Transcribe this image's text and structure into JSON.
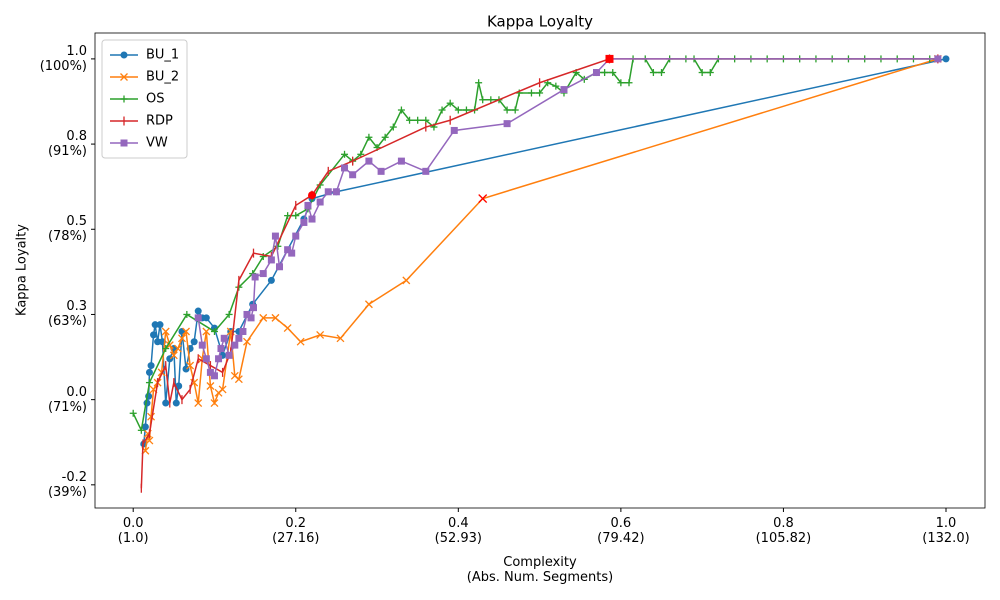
{
  "chart_data": {
    "type": "line",
    "title": "Kappa Loyalty",
    "xlabel": "Complexity\n(Abs. Num. Segments)",
    "ylabel": "Kappa Loyalty",
    "xlim": [
      -0.047,
      1.048
    ],
    "ylim": [
      -0.318,
      1.076
    ],
    "xticks": [
      {
        "value": 0,
        "label": "0.0\n(1.0)"
      },
      {
        "value": 0.2,
        "label": "0.2\n(27.16)"
      },
      {
        "value": 0.4,
        "label": "0.4\n(52.93)"
      },
      {
        "value": 0.6,
        "label": "0.6\n(79.42)"
      },
      {
        "value": 0.8,
        "label": "0.8\n(105.82)"
      },
      {
        "value": 1,
        "label": "1.0\n(132.0)"
      }
    ],
    "yticks": [
      {
        "value": -0.25,
        "label": "-0.2\n(39%)"
      },
      {
        "value": 0,
        "label": "0.0\n(71%)"
      },
      {
        "value": 0.25,
        "label": "0.3\n(63%)"
      },
      {
        "value": 0.5,
        "label": "0.5\n(78%)"
      },
      {
        "value": 0.75,
        "label": "0.8\n(91%)"
      },
      {
        "value": 1,
        "label": "1.0\n(100%)"
      }
    ],
    "legend": "upper left",
    "series": [
      {
        "name": "BU_1",
        "color": "#1f77b4",
        "marker": "o",
        "x": [
          0.013,
          0.015,
          0.017,
          0.019,
          0.02,
          0.022,
          0.025,
          0.027,
          0.03,
          0.033,
          0.036,
          0.04,
          0.045,
          0.05,
          0.053,
          0.056,
          0.06,
          0.065,
          0.07,
          0.075,
          0.08,
          0.085,
          0.09,
          0.1,
          0.11,
          0.12,
          0.13,
          0.147,
          0.17,
          0.21,
          0.22,
          0.25,
          1.0
        ],
        "values": [
          -0.13,
          -0.08,
          -0.01,
          0.01,
          0.08,
          0.1,
          0.19,
          0.22,
          0.17,
          0.22,
          0.17,
          -0.01,
          0.12,
          0.15,
          -0.01,
          0.04,
          0.2,
          0.09,
          0.15,
          0.17,
          0.26,
          0.24,
          0.24,
          0.21,
          0.13,
          0.2,
          0.2,
          0.28,
          0.35,
          0.53,
          0.59,
          0.61,
          1.0
        ]
      },
      {
        "name": "BU_2",
        "color": "#ff7f0e",
        "marker": "x",
        "x": [
          0.015,
          0.018,
          0.02,
          0.022,
          0.025,
          0.03,
          0.035,
          0.04,
          0.045,
          0.05,
          0.055,
          0.06,
          0.065,
          0.07,
          0.075,
          0.08,
          0.085,
          0.09,
          0.095,
          0.1,
          0.105,
          0.11,
          0.12,
          0.125,
          0.13,
          0.14,
          0.16,
          0.175,
          0.19,
          0.206,
          0.23,
          0.255,
          0.29,
          0.336,
          0.43,
          0.99
        ],
        "values": [
          -0.15,
          -0.1,
          -0.12,
          -0.05,
          0.03,
          0.05,
          0.08,
          0.2,
          0.16,
          0.13,
          0.15,
          0.18,
          0.2,
          0.1,
          0.05,
          -0.01,
          0.12,
          0.2,
          0.04,
          -0.01,
          0.02,
          0.03,
          0.2,
          0.07,
          0.06,
          0.17,
          0.24,
          0.24,
          0.21,
          0.17,
          0.19,
          0.18,
          0.28,
          0.35,
          0.59,
          1.0
        ]
      },
      {
        "name": "OS",
        "color": "#2ca02c",
        "marker": "+",
        "x": [
          0.0,
          0.01,
          0.02,
          0.04,
          0.066,
          0.1,
          0.118,
          0.13,
          0.147,
          0.16,
          0.178,
          0.19,
          0.2,
          0.215,
          0.23,
          0.26,
          0.27,
          0.28,
          0.29,
          0.3,
          0.31,
          0.32,
          0.33,
          0.34,
          0.35,
          0.36,
          0.37,
          0.38,
          0.39,
          0.4,
          0.41,
          0.42,
          0.425,
          0.43,
          0.44,
          0.45,
          0.46,
          0.47,
          0.475,
          0.49,
          0.5,
          0.51,
          0.52,
          0.53,
          0.545,
          0.555,
          0.57,
          0.58,
          0.59,
          0.6,
          0.61,
          0.615,
          0.63,
          0.64,
          0.65,
          0.66,
          0.68,
          0.69,
          0.7,
          0.71,
          0.72,
          0.74,
          0.76,
          0.78,
          0.8,
          0.82,
          0.84,
          0.86,
          0.88,
          0.9,
          0.92,
          0.94,
          0.96,
          0.98,
          0.99
        ],
        "values": [
          -0.04,
          -0.09,
          0.05,
          0.15,
          0.25,
          0.2,
          0.25,
          0.33,
          0.37,
          0.42,
          0.45,
          0.54,
          0.54,
          0.56,
          0.63,
          0.72,
          0.7,
          0.72,
          0.77,
          0.74,
          0.77,
          0.8,
          0.85,
          0.82,
          0.82,
          0.82,
          0.8,
          0.85,
          0.87,
          0.85,
          0.85,
          0.85,
          0.93,
          0.88,
          0.88,
          0.88,
          0.85,
          0.85,
          0.9,
          0.9,
          0.9,
          0.93,
          0.92,
          0.9,
          0.96,
          0.94,
          0.96,
          0.96,
          0.96,
          0.93,
          0.93,
          1.0,
          1.0,
          0.96,
          0.96,
          1.0,
          1.0,
          1.0,
          0.96,
          0.96,
          1.0,
          1.0,
          1.0,
          1.0,
          1.0,
          1.0,
          1.0,
          1.0,
          1.0,
          1.0,
          1.0,
          1.0,
          1.0,
          1.0,
          1.0
        ]
      },
      {
        "name": "RDP",
        "color": "#d62728",
        "marker": "|",
        "x": [
          0.01,
          0.012,
          0.02,
          0.03,
          0.04,
          0.045,
          0.05,
          0.06,
          0.07,
          0.08,
          0.095,
          0.11,
          0.12,
          0.13,
          0.148,
          0.17,
          0.2,
          0.22,
          0.24,
          0.27,
          0.36,
          0.39,
          0.5,
          0.586,
          0.99
        ],
        "values": [
          -0.26,
          -0.13,
          -0.1,
          0.05,
          0.1,
          -0.01,
          0.05,
          0.0,
          0.03,
          0.12,
          0.1,
          0.08,
          0.14,
          0.35,
          0.43,
          0.42,
          0.57,
          0.6,
          0.67,
          0.7,
          0.8,
          0.82,
          0.93,
          1.0,
          1.0
        ]
      },
      {
        "name": "VW",
        "color": "#9467bd",
        "marker": "s",
        "x": [
          0.08,
          0.085,
          0.09,
          0.095,
          0.1,
          0.105,
          0.108,
          0.112,
          0.118,
          0.125,
          0.13,
          0.135,
          0.14,
          0.145,
          0.148,
          0.15,
          0.16,
          0.17,
          0.175,
          0.18,
          0.19,
          0.195,
          0.2,
          0.21,
          0.215,
          0.22,
          0.23,
          0.24,
          0.25,
          0.26,
          0.27,
          0.29,
          0.305,
          0.33,
          0.36,
          0.395,
          0.46,
          0.53,
          0.57,
          0.586,
          0.99
        ],
        "values": [
          0.24,
          0.16,
          0.12,
          0.08,
          0.07,
          0.12,
          0.15,
          0.18,
          0.13,
          0.16,
          0.18,
          0.2,
          0.25,
          0.24,
          0.27,
          0.36,
          0.37,
          0.41,
          0.48,
          0.39,
          0.44,
          0.43,
          0.48,
          0.52,
          0.57,
          0.53,
          0.58,
          0.61,
          0.61,
          0.68,
          0.66,
          0.7,
          0.67,
          0.7,
          0.67,
          0.79,
          0.81,
          0.91,
          0.96,
          1.0,
          1.0
        ]
      }
    ],
    "highlights": [
      {
        "x": 0.22,
        "y": 0.6,
        "marker": "o",
        "color": "#ff0000"
      },
      {
        "x": 0.43,
        "y": 0.59,
        "marker": "x",
        "color": "#ff0000"
      },
      {
        "x": 0.586,
        "y": 1.0,
        "marker": "s",
        "color": "#ff0000"
      }
    ]
  }
}
